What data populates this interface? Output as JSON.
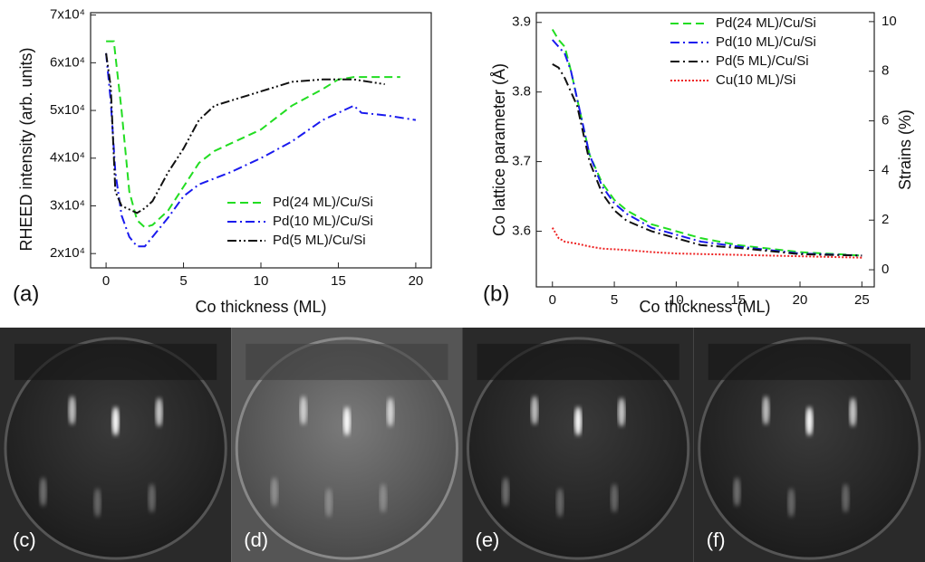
{
  "chart_data": [
    {
      "type": "line",
      "panel_label": "(a)",
      "xlabel": "Co thickness (ML)",
      "ylabel": "RHEED intensity (arb. units)",
      "xlim": [
        -1,
        21
      ],
      "ylim": [
        17000,
        70500
      ],
      "xticks": [
        0,
        5,
        10,
        15,
        20
      ],
      "yticks": [
        {
          "value": 20000,
          "label": "2x10⁴"
        },
        {
          "value": 30000,
          "label": "3x10⁴"
        },
        {
          "value": 40000,
          "label": "4x10⁴"
        },
        {
          "value": 50000,
          "label": "5x10⁴"
        },
        {
          "value": 60000,
          "label": "6x10⁴"
        },
        {
          "value": 70000,
          "label": "7x10⁴"
        }
      ],
      "legend": "lower right",
      "series": [
        {
          "name": "Pd(24 ML)/Cu/Si",
          "color": "#22dd22",
          "linestyle": "dashed",
          "x": [
            0,
            0.5,
            1,
            1.5,
            2,
            2.5,
            3,
            4,
            5,
            6,
            7,
            8,
            10,
            12,
            14,
            15,
            16,
            17,
            18,
            19
          ],
          "values": [
            64500,
            64500,
            50000,
            33000,
            27000,
            25500,
            26000,
            29000,
            34000,
            39000,
            41500,
            43000,
            46000,
            51000,
            54500,
            56500,
            57000,
            57000,
            57000,
            57000
          ]
        },
        {
          "name": "Pd(10 ML)/Cu/Si",
          "color": "#1a1aee",
          "linestyle": "dashdot",
          "x": [
            0,
            0.3,
            0.6,
            1,
            1.5,
            2,
            2.5,
            3,
            4,
            5,
            6,
            8,
            10,
            12,
            14,
            16,
            16.5,
            18,
            20
          ],
          "values": [
            62000,
            52000,
            37000,
            28000,
            23500,
            21500,
            21500,
            23500,
            27500,
            32000,
            34500,
            37000,
            40000,
            43500,
            48000,
            51000,
            49500,
            49000,
            48000
          ]
        },
        {
          "name": "Pd(5 ML)/Cu/Si",
          "color": "#111111",
          "linestyle": "dashdotdot",
          "x": [
            0,
            0.3,
            0.6,
            1,
            2,
            2.5,
            3,
            4,
            5,
            6,
            7,
            8,
            10,
            12,
            14,
            16,
            17,
            18
          ],
          "values": [
            62000,
            55000,
            33000,
            30000,
            28500,
            29500,
            31000,
            37000,
            42000,
            48000,
            51000,
            52000,
            54000,
            56000,
            56500,
            56500,
            56000,
            55500
          ]
        }
      ]
    },
    {
      "type": "line",
      "panel_label": "(b)",
      "xlabel": "Co thickness (ML)",
      "ylabel": "Co lattice parameter (Å)",
      "y2label": "Strains (%)",
      "xlim": [
        -1.3,
        26
      ],
      "ylim": [
        3.52,
        3.914
      ],
      "y2lim": [
        -0.69,
        10.36
      ],
      "xticks": [
        0,
        5,
        10,
        15,
        20,
        25
      ],
      "yticks": [
        3.6,
        3.7,
        3.8,
        3.9
      ],
      "y2ticks": [
        0,
        2,
        4,
        6,
        8,
        10
      ],
      "legend": "upper right",
      "series": [
        {
          "name": "Pd(24 ML)/Cu/Si",
          "color": "#22dd22",
          "linestyle": "dashed",
          "x": [
            0,
            0.5,
            1,
            1.5,
            2,
            2.5,
            3,
            4,
            5,
            6,
            8,
            10,
            12,
            15,
            20,
            25
          ],
          "values": [
            3.89,
            3.875,
            3.865,
            3.83,
            3.79,
            3.75,
            3.71,
            3.67,
            3.645,
            3.63,
            3.61,
            3.6,
            3.59,
            3.58,
            3.57,
            3.565
          ]
        },
        {
          "name": "Pd(10 ML)/Cu/Si",
          "color": "#1a1aee",
          "linestyle": "dashdot",
          "x": [
            0,
            0.5,
            1,
            1.5,
            2,
            2.5,
            3,
            4,
            5,
            6,
            8,
            10,
            12,
            15,
            20,
            25
          ],
          "values": [
            3.875,
            3.865,
            3.855,
            3.83,
            3.79,
            3.75,
            3.71,
            3.665,
            3.64,
            3.625,
            3.605,
            3.595,
            3.585,
            3.578,
            3.568,
            3.565
          ]
        },
        {
          "name": "Pd(5 ML)/Cu/Si",
          "color": "#111111",
          "linestyle": "dashdot",
          "x": [
            0,
            0.5,
            1,
            2,
            3,
            4,
            5,
            6,
            8,
            10,
            12,
            15,
            20,
            25
          ],
          "values": [
            3.84,
            3.835,
            3.82,
            3.78,
            3.7,
            3.655,
            3.63,
            3.615,
            3.6,
            3.59,
            3.58,
            3.576,
            3.567,
            3.565
          ]
        },
        {
          "name": "Cu(10 ML)/Si",
          "color": "#ee2222",
          "linestyle": "dotted",
          "x": [
            0,
            0.5,
            1,
            2,
            3,
            4,
            6,
            8,
            10,
            15,
            20,
            25
          ],
          "values": [
            3.605,
            3.59,
            3.585,
            3.582,
            3.578,
            3.575,
            3.573,
            3.57,
            3.568,
            3.566,
            3.564,
            3.562
          ]
        }
      ]
    }
  ],
  "images": [
    {
      "label": "(c)"
    },
    {
      "label": "(d)"
    },
    {
      "label": "(e)"
    },
    {
      "label": "(f)"
    }
  ]
}
